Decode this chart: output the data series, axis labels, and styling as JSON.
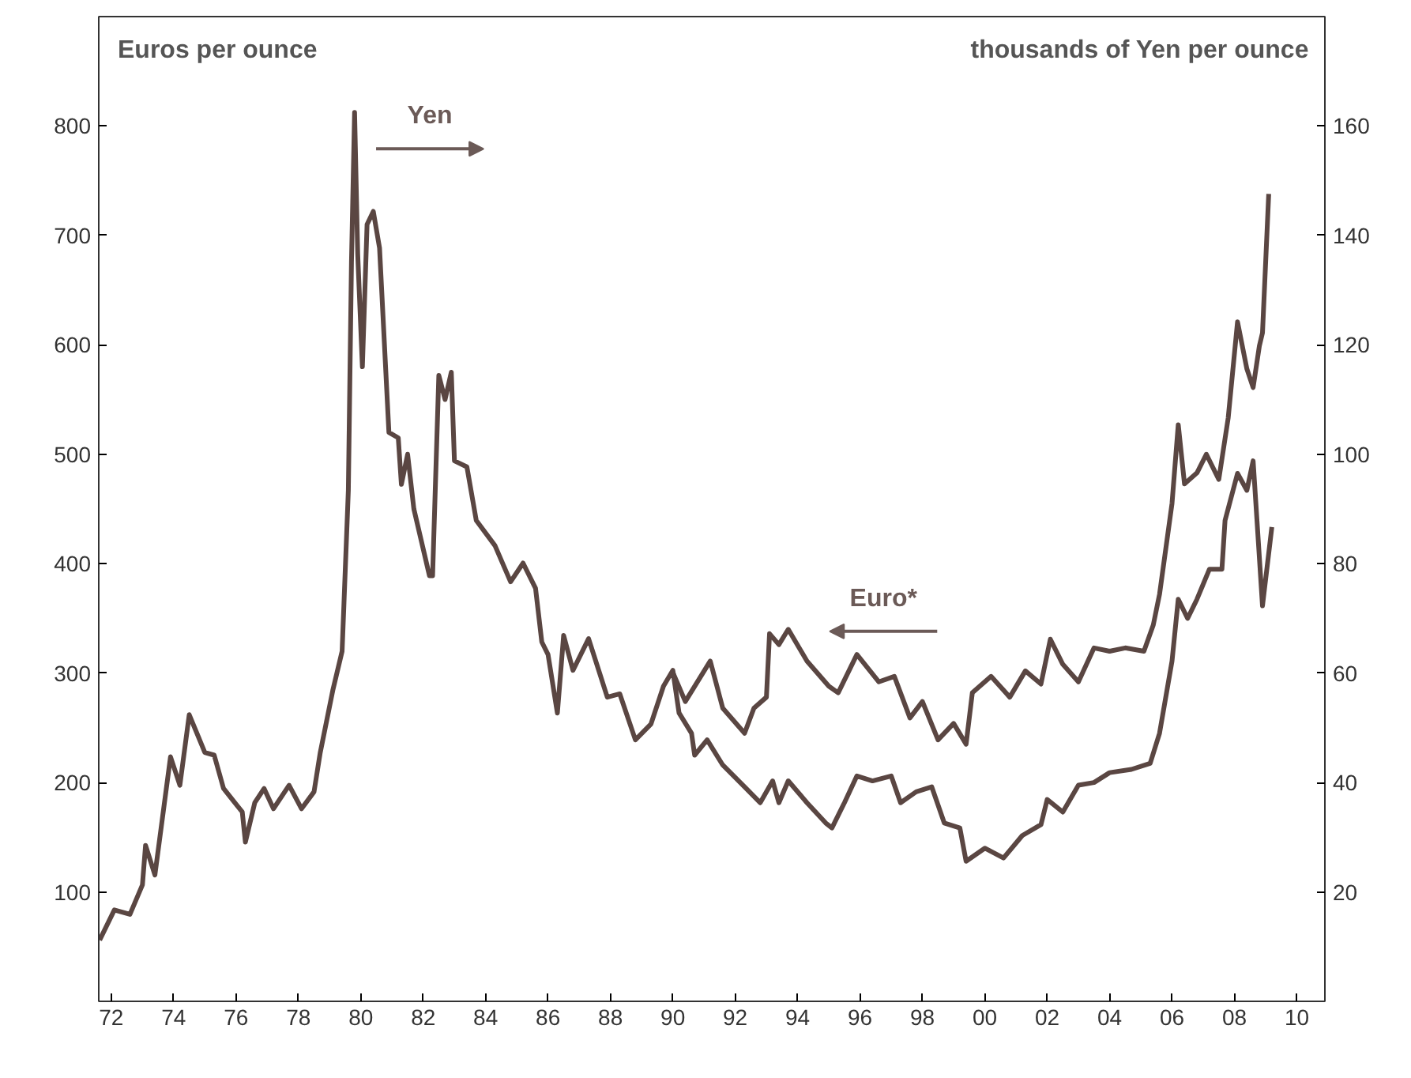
{
  "chart_data": {
    "type": "line",
    "ylabel": "Euros per ounce",
    "y2label": "thousands of Yen per ounce",
    "xlim": [
      1971.6,
      2010.9
    ],
    "ylim": [
      0,
      900
    ],
    "y2lim": [
      0,
      180
    ],
    "xticks": [
      {
        "value": 1972,
        "label": "72"
      },
      {
        "value": 1974,
        "label": "74"
      },
      {
        "value": 1976,
        "label": "76"
      },
      {
        "value": 1978,
        "label": "78"
      },
      {
        "value": 1980,
        "label": "80"
      },
      {
        "value": 1982,
        "label": "82"
      },
      {
        "value": 1984,
        "label": "84"
      },
      {
        "value": 1986,
        "label": "86"
      },
      {
        "value": 1988,
        "label": "88"
      },
      {
        "value": 1990,
        "label": "90"
      },
      {
        "value": 1992,
        "label": "92"
      },
      {
        "value": 1994,
        "label": "94"
      },
      {
        "value": 1996,
        "label": "96"
      },
      {
        "value": 1998,
        "label": "98"
      },
      {
        "value": 2000,
        "label": "00"
      },
      {
        "value": 2002,
        "label": "02"
      },
      {
        "value": 2004,
        "label": "04"
      },
      {
        "value": 2006,
        "label": "06"
      },
      {
        "value": 2008,
        "label": "08"
      },
      {
        "value": 2010,
        "label": "10"
      }
    ],
    "yticks": [
      100,
      200,
      300,
      400,
      500,
      600,
      700,
      800
    ],
    "y2ticks": [
      20,
      40,
      60,
      80,
      100,
      120,
      140,
      160
    ],
    "grid": false,
    "marker": "none",
    "line_style": "solid",
    "series": [
      {
        "name": "Yen",
        "axis": "y2",
        "color": "#5a4642",
        "x": [
          1971.63,
          1972.1,
          1972.6,
          1973.0,
          1973.1,
          1973.4,
          1973.9,
          1974.2,
          1974.5,
          1975.0,
          1975.3,
          1975.6,
          1976.2,
          1976.3,
          1976.6,
          1976.9,
          1977.2,
          1977.7,
          1978.1,
          1978.5,
          1978.7,
          1979.1,
          1979.4,
          1979.6,
          1979.7,
          1979.8,
          1979.9,
          1980.05,
          1980.2,
          1980.4,
          1980.6,
          1980.9,
          1981.2,
          1981.3,
          1981.5,
          1981.7,
          1982.2,
          1982.3,
          1982.5,
          1982.7,
          1982.9,
          1983.0,
          1983.4,
          1983.7,
          1984.3,
          1984.8,
          1985.2,
          1985.6,
          1985.8,
          1986.0,
          1986.3,
          1986.5,
          1986.8,
          1987.3,
          1987.9,
          1988.3,
          1988.8,
          1989.3,
          1989.7,
          1990.0,
          1990.2,
          1990.6,
          1990.7,
          1991.1,
          1991.6,
          1992.3,
          1992.8,
          1993.2,
          1993.4,
          1993.7,
          1994.3,
          1994.9,
          1995.1,
          1995.5,
          1995.9,
          1996.4,
          1997.0,
          1997.3,
          1997.8,
          1998.3,
          1998.7,
          1999.2,
          1999.4,
          2000.0,
          2000.6,
          2001.2,
          2001.8,
          2002.0,
          2002.5,
          2003.0,
          2003.5,
          2004.0,
          2004.7,
          2005.3,
          2005.6,
          2006.0,
          2006.2,
          2006.5,
          2006.8,
          2007.2,
          2007.6,
          2007.7,
          2008.1,
          2008.4,
          2008.6,
          2008.9,
          2009.2
        ],
        "values": [
          11.2,
          16.7,
          15.9,
          21.3,
          28.5,
          23.1,
          44.7,
          39.5,
          52.4,
          45.5,
          45,
          38.9,
          34.6,
          29.1,
          36.3,
          38.9,
          35.2,
          39.5,
          35.2,
          38.3,
          45.5,
          56.8,
          64,
          93.4,
          135,
          162.5,
          136.6,
          116,
          142,
          144.4,
          137.7,
          104,
          103,
          94.5,
          100,
          90,
          77.8,
          77.8,
          114.4,
          110,
          115,
          98.8,
          97.7,
          87.9,
          83.3,
          76.7,
          80.1,
          75.5,
          65.7,
          63.4,
          52.7,
          66.9,
          60.5,
          66.3,
          55.6,
          56.2,
          47.8,
          50.7,
          57.6,
          60.5,
          52.7,
          49,
          45,
          47.8,
          43.2,
          39.2,
          36.3,
          40.3,
          36.3,
          40.3,
          36.3,
          32.6,
          31.7,
          36.3,
          41.2,
          40.3,
          41.2,
          36.3,
          38.3,
          39.2,
          32.6,
          31.7,
          25.6,
          28,
          26.2,
          30.3,
          32.3,
          36.9,
          34.6,
          39.5,
          40,
          41.8,
          42.4,
          43.5,
          49,
          62.2,
          73.5,
          70,
          73.5,
          79,
          79,
          87.9,
          96.5,
          93.4,
          98.8,
          72.3,
          86.7
        ]
      },
      {
        "name": "Euro*",
        "axis": "y",
        "color": "#5a4642",
        "x": [
          1989.98,
          1990.4,
          1991.2,
          1991.6,
          1992.3,
          1992.6,
          1993.0,
          1993.1,
          1993.4,
          1993.7,
          1994.3,
          1995.0,
          1995.3,
          1995.9,
          1996.6,
          1997.1,
          1997.6,
          1998.0,
          1998.5,
          1999.0,
          1999.4,
          1999.6,
          2000.2,
          2000.8,
          2001.3,
          2001.8,
          2002.1,
          2002.5,
          2003.0,
          2003.5,
          2004.0,
          2004.5,
          2005.1,
          2005.4,
          2005.6,
          2006.0,
          2006.2,
          2006.4,
          2006.8,
          2007.1,
          2007.5,
          2007.8,
          2008.1,
          2008.4,
          2008.6,
          2008.8,
          2008.9,
          2009.1
        ],
        "values": [
          302,
          274,
          311,
          268,
          245,
          268,
          278,
          336,
          326,
          340,
          311,
          288,
          282,
          317,
          292,
          297,
          259,
          274,
          239,
          254,
          235,
          282,
          297,
          278,
          302,
          290,
          331,
          308,
          292,
          323,
          320,
          323,
          320,
          344,
          372,
          455,
          527,
          473,
          483,
          500,
          477,
          533,
          621,
          578,
          561,
          599,
          611,
          738
        ]
      }
    ]
  }
}
